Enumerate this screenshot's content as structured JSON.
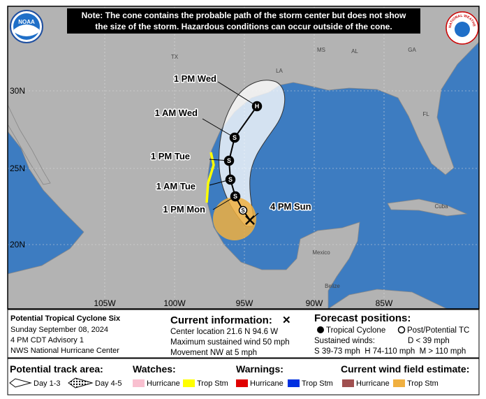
{
  "header": {
    "note": [
      "Note: The cone contains the probable path of the storm center but does not show",
      "the size of the storm. Hazardous conditions can occur outside of the cone."
    ],
    "left_logo": "NOAA",
    "right_logo": "NATIONAL WEATHER SERVICE"
  },
  "map": {
    "lat_labels": [
      "30N",
      "25N",
      "20N"
    ],
    "lon_labels": [
      "105W",
      "100W",
      "95W",
      "90W",
      "85W"
    ],
    "places": [
      "TX",
      "LA",
      "MS",
      "AL",
      "GA",
      "FL",
      "Cuba",
      "Mexico",
      "Belize"
    ],
    "track": [
      {
        "time": "1 PM Wed",
        "symbol": "H"
      },
      {
        "time": "1 AM Wed",
        "symbol": "S"
      },
      {
        "time": "1 PM Tue",
        "symbol": "S"
      },
      {
        "time": "1 AM Tue",
        "symbol": "S"
      },
      {
        "time": "1 PM Mon",
        "symbol": "S"
      },
      {
        "time": null,
        "symbol": "S"
      },
      {
        "time": "4 PM Sun",
        "symbol": null
      }
    ]
  },
  "info": {
    "storm": [
      "Potential Tropical Cyclone Six",
      "Sunday September 08, 2024",
      "4 PM CDT Advisory 1",
      "NWS National Hurricane Center"
    ],
    "current": {
      "title": "Current information:",
      "symbol": "✕",
      "lines": [
        "Center location 21.6 N 94.6 W",
        "Maximum sustained wind 50 mph",
        "Movement NW at 5 mph"
      ]
    },
    "forecast": {
      "title": "Forecast positions:",
      "tropical": "Tropical Cyclone",
      "post": "Post/Potential TC",
      "winds": "Sustained winds:",
      "d": "D < 39 mph",
      "scale": "S 39-73 mph  H 74-110 mph  M > 110 mph"
    }
  },
  "legend": {
    "track_area": {
      "title": "Potential track area:",
      "items": [
        "Day 1-3",
        "Day 4-5"
      ]
    },
    "watches": {
      "title": "Watches:",
      "items": [
        "Hurricane",
        "Trop Stm"
      ]
    },
    "warnings": {
      "title": "Warnings:",
      "items": [
        "Hurricane",
        "Trop Stm"
      ]
    },
    "wind_field": {
      "title": "Current wind field estimate:",
      "items": [
        "Hurricane",
        "Trop Stm"
      ]
    }
  }
}
